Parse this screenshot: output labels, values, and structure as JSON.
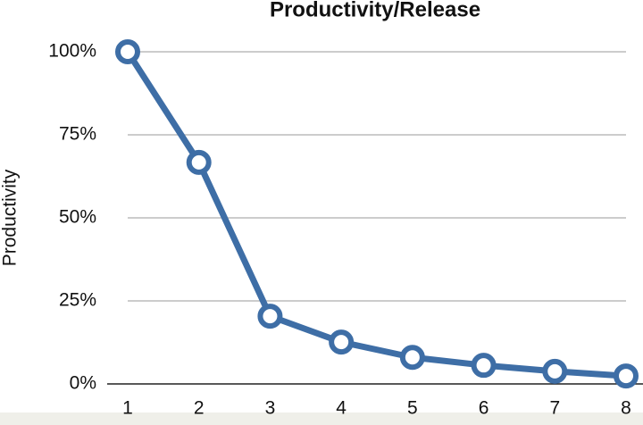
{
  "chart_data": {
    "type": "line",
    "title": "Productivity/Release",
    "y_label": "Productivity",
    "categories": [
      "1",
      "2",
      "3",
      "4",
      "5",
      "6",
      "7",
      "8"
    ],
    "values": [
      100,
      66.7,
      20.4,
      12.6,
      8,
      5.6,
      3.8,
      2.4
    ],
    "color": "#3e6ea6",
    "ylim": [
      0,
      100
    ],
    "yticks": [
      {
        "value": 0,
        "label": "0%"
      },
      {
        "value": 25,
        "label": "25%"
      },
      {
        "value": 50,
        "label": "50%"
      },
      {
        "value": 75,
        "label": "75%"
      },
      {
        "value": 100,
        "label": "100%"
      }
    ],
    "grid": true
  }
}
